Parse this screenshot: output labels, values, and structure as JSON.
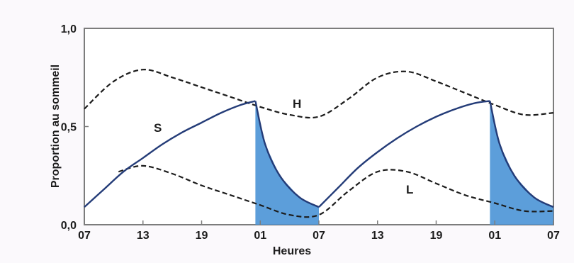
{
  "chart_data": {
    "type": "line",
    "title": "",
    "xlabel": "Heures",
    "ylabel": "Proportion au sommeil",
    "ylim": [
      0,
      1
    ],
    "y_ticks": [
      "0,0",
      "0,5",
      "1,0"
    ],
    "x_ticks": [
      "07",
      "13",
      "19",
      "01",
      "07",
      "13",
      "19",
      "01",
      "07"
    ],
    "x_range_hours": [
      0,
      48
    ],
    "grid": false,
    "colors": {
      "shade": "#4a93d6",
      "line_s": "#243c78",
      "line_dashed": "#1c1c1c",
      "frame": "#7c7c7c"
    },
    "series": [
      {
        "name": "H",
        "style": "dashed",
        "x": [
          0,
          3,
          6,
          9,
          12,
          15,
          18,
          21,
          24,
          27,
          30,
          33,
          36,
          39,
          42,
          45,
          48
        ],
        "values": [
          0.59,
          0.73,
          0.79,
          0.75,
          0.7,
          0.65,
          0.6,
          0.56,
          0.55,
          0.64,
          0.75,
          0.78,
          0.73,
          0.67,
          0.61,
          0.56,
          0.57
        ]
      },
      {
        "name": "L",
        "style": "dashed",
        "x": [
          3.5,
          6,
          9,
          12,
          15,
          18,
          21,
          24,
          27,
          30,
          33,
          36,
          39,
          42,
          45,
          48
        ],
        "values": [
          0.27,
          0.3,
          0.26,
          0.2,
          0.15,
          0.1,
          0.05,
          0.05,
          0.17,
          0.27,
          0.27,
          0.21,
          0.15,
          0.11,
          0.07,
          0.07
        ]
      },
      {
        "name": "S",
        "style": "solid",
        "x": [
          0,
          2,
          4,
          6,
          8,
          10,
          12,
          14,
          16,
          17.5,
          18.5,
          20,
          22,
          24,
          26,
          28,
          30,
          32,
          34,
          36,
          38,
          40,
          41.5,
          42.5,
          44,
          46,
          48
        ],
        "values": [
          0.09,
          0.18,
          0.27,
          0.34,
          0.41,
          0.47,
          0.52,
          0.57,
          0.61,
          0.63,
          0.41,
          0.25,
          0.14,
          0.09,
          0.19,
          0.29,
          0.37,
          0.44,
          0.5,
          0.55,
          0.59,
          0.62,
          0.63,
          0.41,
          0.25,
          0.14,
          0.09
        ]
      }
    ],
    "shaded_intervals_hours": [
      [
        17.5,
        24
      ],
      [
        41.5,
        48
      ]
    ]
  }
}
